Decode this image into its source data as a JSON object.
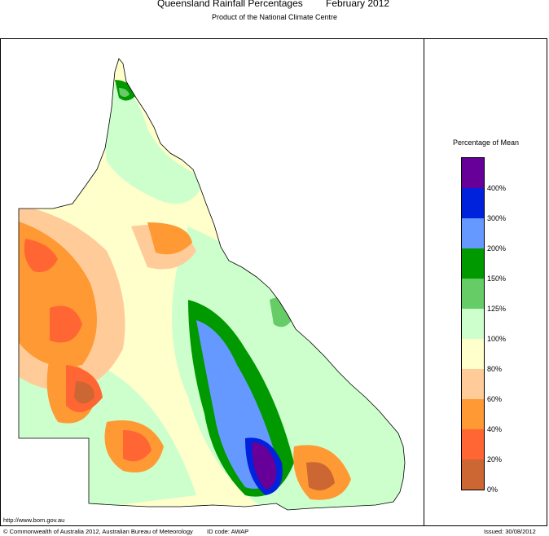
{
  "header": {
    "title": "Queensland Rainfall Percentages",
    "period": "February 2012",
    "subtitle": "Product of the National Climate Centre"
  },
  "legend": {
    "title": "Percentage of Mean",
    "bins": [
      {
        "label": "400%",
        "color": "#660099"
      },
      {
        "label": "300%",
        "color": "#0022dd"
      },
      {
        "label": "200%",
        "color": "#6699ff"
      },
      {
        "label": "150%",
        "color": "#009900"
      },
      {
        "label": "125%",
        "color": "#66cc66"
      },
      {
        "label": "100%",
        "color": "#ccffcc"
      },
      {
        "label": "80%",
        "color": "#ffffcc"
      },
      {
        "label": "60%",
        "color": "#ffcc99"
      },
      {
        "label": "40%",
        "color": "#ff9933"
      },
      {
        "label": "20%",
        "color": "#ff6633"
      },
      {
        "label": "0%",
        "color": "#cc6633"
      }
    ]
  },
  "footer": {
    "url": "http://www.bom.gov.au",
    "copyright": "© Commonwealth of Australia 2012, Australian Bureau of Meteorology",
    "id_code": "ID code: AWAP",
    "issued": "Issued: 30/08/2012"
  }
}
